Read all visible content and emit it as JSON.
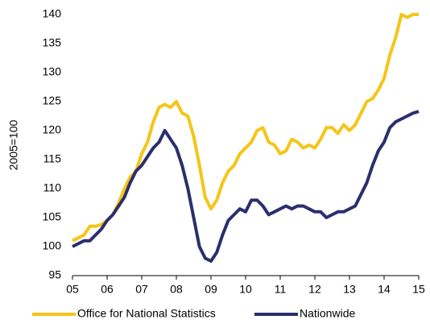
{
  "chart_data": {
    "type": "line",
    "y_label": "2005=100",
    "categories": [
      "05",
      null,
      null,
      null,
      null,
      null,
      "06",
      null,
      null,
      null,
      null,
      null,
      "07",
      null,
      null,
      null,
      null,
      null,
      "08",
      null,
      null,
      null,
      null,
      null,
      "09",
      null,
      null,
      null,
      null,
      null,
      "10",
      null,
      null,
      null,
      null,
      null,
      "11",
      null,
      null,
      null,
      null,
      null,
      "12",
      null,
      null,
      null,
      null,
      null,
      "13",
      null,
      null,
      null,
      null,
      null,
      "14",
      null,
      null,
      null,
      null,
      null,
      "15"
    ],
    "series": [
      {
        "name": "Office for National Statistics",
        "color": "#f5c518",
        "values": [
          101,
          101.5,
          102,
          103.5,
          103.5,
          103.8,
          104.5,
          105.5,
          107.5,
          110,
          112,
          113,
          116,
          118,
          121.5,
          124,
          124.5,
          124,
          125,
          123,
          122.5,
          119,
          114,
          108.5,
          106.5,
          108,
          111,
          113,
          114,
          116,
          117,
          118,
          120,
          120.5,
          118,
          117.5,
          116,
          116.5,
          118.5,
          118,
          117,
          117.5,
          117,
          118.5,
          120.5,
          120.5,
          119.5,
          121,
          120,
          121,
          123,
          125,
          125.5,
          127,
          129,
          133,
          136,
          140,
          139.5,
          140,
          140
        ]
      },
      {
        "name": "Nationwide",
        "color": "#2b2f6b",
        "values": [
          100,
          100.5,
          101,
          101,
          102,
          103,
          104.5,
          105.5,
          107,
          108.5,
          111,
          113,
          114,
          115.5,
          117,
          118,
          120,
          118.5,
          117,
          114,
          110,
          105,
          100,
          98,
          97.5,
          99,
          102,
          104.5,
          105.5,
          106.5,
          106,
          108,
          108,
          107,
          105.5,
          106,
          106.5,
          107,
          106.5,
          107,
          107,
          106.5,
          106,
          106,
          105,
          105.5,
          106,
          106,
          106.5,
          107,
          109,
          111,
          114,
          116.5,
          118,
          120.5,
          121.5,
          122,
          122.5,
          123,
          123.3
        ]
      }
    ],
    "ylim": [
      95,
      140
    ],
    "yticks": [
      95,
      100,
      105,
      110,
      115,
      120,
      125,
      130,
      135,
      140
    ],
    "legend": "bottom"
  }
}
